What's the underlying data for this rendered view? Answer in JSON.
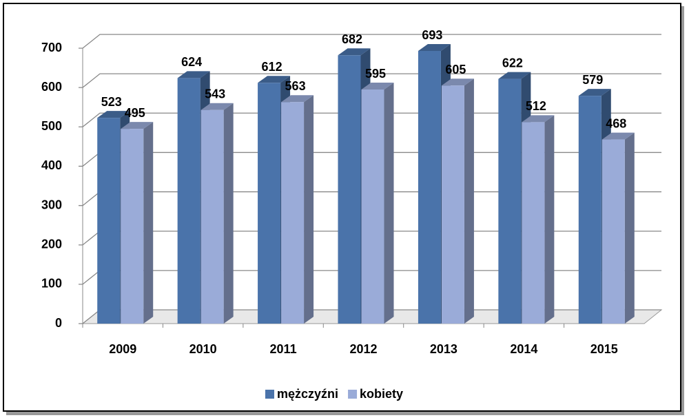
{
  "chart_data": {
    "type": "bar3d",
    "categories": [
      "2009",
      "2010",
      "2011",
      "2012",
      "2013",
      "2014",
      "2015"
    ],
    "series": [
      {
        "name": "mężczyźni",
        "color": "#4a73aa",
        "values": [
          523,
          624,
          612,
          682,
          693,
          622,
          579
        ]
      },
      {
        "name": "kobiety",
        "color": "#9aabd8",
        "values": [
          495,
          543,
          563,
          595,
          605,
          512,
          468
        ]
      }
    ],
    "ylim": [
      0,
      700
    ],
    "yticks": [
      0,
      100,
      200,
      300,
      400,
      500,
      600,
      700
    ],
    "grid": true,
    "legend": "bottom"
  }
}
